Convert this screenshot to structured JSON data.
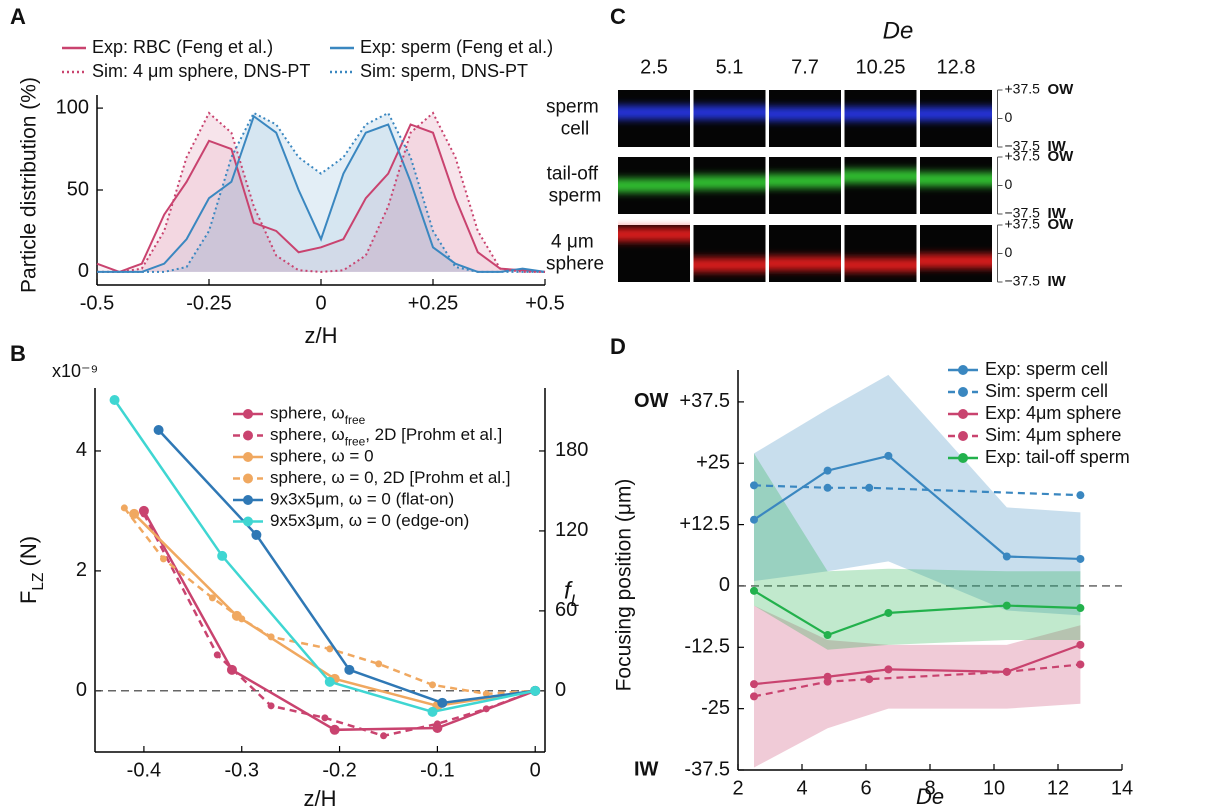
{
  "chart_data": [
    {
      "type": "line",
      "panel": "A",
      "xlabel": "z/H",
      "ylabel": "Particle distribution (%)",
      "xlim": [
        -0.5,
        0.5
      ],
      "ylim": [
        -8,
        108
      ],
      "xticks": [
        {
          "value": -0.5,
          "label": "-0.5"
        },
        {
          "value": -0.25,
          "label": "-0.25"
        },
        0,
        {
          "value": 0.25,
          "label": "+0.25"
        },
        {
          "value": 0.5,
          "label": "+0.5"
        }
      ],
      "yticks": [
        0,
        50,
        100
      ],
      "fill": true,
      "x": [
        -0.5,
        -0.45,
        -0.4,
        -0.35,
        -0.3,
        -0.25,
        -0.2,
        -0.15,
        -0.1,
        -0.05,
        0,
        0.05,
        0.1,
        0.15,
        0.2,
        0.25,
        0.3,
        0.35,
        0.4,
        0.45,
        0.5
      ],
      "series": [
        {
          "name": "Exp: RBC (Feng et al.)",
          "color": "#c9436f",
          "style": "solid",
          "values": [
            5,
            0,
            5,
            35,
            55,
            80,
            75,
            30,
            25,
            12,
            15,
            20,
            45,
            60,
            90,
            85,
            45,
            12,
            2,
            1,
            0
          ]
        },
        {
          "name": "Exp: sperm (Feng et al.)",
          "color": "#3a87c0",
          "style": "solid",
          "values": [
            0,
            0,
            0,
            5,
            20,
            45,
            55,
            95,
            85,
            50,
            20,
            60,
            85,
            90,
            55,
            15,
            5,
            0,
            0,
            2,
            0
          ]
        },
        {
          "name": "Sim: 4 μm sphere, DNS-PT",
          "color": "#c9436f",
          "style": "dotted",
          "values": [
            0,
            0,
            2,
            25,
            70,
            97,
            85,
            40,
            10,
            1,
            0,
            1,
            10,
            40,
            85,
            97,
            70,
            25,
            2,
            0,
            0
          ]
        },
        {
          "name": "Sim: sperm, DNS-PT",
          "color": "#3a87c0",
          "style": "dotted",
          "values": [
            0,
            0,
            0,
            0,
            3,
            25,
            70,
            97,
            90,
            70,
            60,
            70,
            90,
            97,
            70,
            25,
            3,
            0,
            0,
            0,
            0
          ]
        }
      ]
    },
    {
      "type": "line",
      "panel": "B",
      "xlabel": "z/H",
      "ylabel": "F_LZ (N)",
      "multiplier": "x10⁻⁹",
      "y2label": "f_L",
      "xlim": [
        -0.45,
        0.01
      ],
      "ylim": [
        -1.02,
        5.05
      ],
      "y2lim": [
        -45.9,
        227.25
      ],
      "xticks": [
        -0.4,
        -0.3,
        -0.2,
        -0.1,
        0
      ],
      "yticks": [
        0,
        2,
        4
      ],
      "y2ticks": [
        0,
        60,
        120,
        180
      ],
      "zero_line": true,
      "series": [
        {
          "name": "sphere, ω_free",
          "color": "#c9436f",
          "style": "solid",
          "x": [
            -0.4,
            -0.31,
            -0.205,
            -0.1,
            0
          ],
          "values": [
            3.0,
            0.35,
            -0.65,
            -0.62,
            0
          ]
        },
        {
          "name": "sphere, ω_free, 2D [Prohm et al.]",
          "color": "#c9436f",
          "style": "dashed",
          "x": [
            -0.4,
            -0.325,
            -0.27,
            -0.215,
            -0.155,
            -0.1,
            -0.05,
            0
          ],
          "values": [
            2.95,
            0.6,
            -0.25,
            -0.45,
            -0.75,
            -0.55,
            -0.3,
            0
          ]
        },
        {
          "name": "sphere, ω = 0",
          "color": "#f0a860",
          "style": "solid",
          "x": [
            -0.41,
            -0.305,
            -0.205,
            -0.1,
            0
          ],
          "values": [
            2.95,
            1.25,
            0.2,
            -0.25,
            0
          ]
        },
        {
          "name": "sphere, ω = 0, 2D [Prohm et al.]",
          "color": "#f0a860",
          "style": "dashed",
          "x": [
            -0.42,
            -0.38,
            -0.33,
            -0.3,
            -0.27,
            -0.21,
            -0.16,
            -0.105,
            -0.05,
            0
          ],
          "values": [
            3.05,
            2.2,
            1.55,
            1.2,
            0.9,
            0.7,
            0.45,
            0.1,
            -0.05,
            0
          ]
        },
        {
          "name": "9x3x5μm, ω = 0 (flat-on)",
          "color": "#2f78b5",
          "style": "solid",
          "x": [
            -0.385,
            -0.285,
            -0.19,
            -0.095,
            0
          ],
          "values": [
            4.35,
            2.6,
            0.35,
            -0.2,
            0
          ]
        },
        {
          "name": "9x5x3μm, ω = 0 (edge-on)",
          "color": "#3fd6d2",
          "style": "solid",
          "x": [
            -0.43,
            -0.32,
            -0.21,
            -0.105,
            0
          ],
          "values": [
            4.85,
            2.25,
            0.15,
            -0.35,
            0
          ]
        }
      ]
    },
    {
      "type": "image-grid",
      "panel": "C",
      "title": "De",
      "categories": [
        "2.5",
        "5.1",
        "7.7",
        "10.25",
        "12.8"
      ],
      "ylim": [
        -37.5,
        37.5
      ],
      "yticks": [
        {
          "value": 37.5,
          "label": "+37.5"
        },
        0,
        {
          "value": -37.5,
          "label": "−37.5"
        }
      ],
      "top_label": "OW",
      "bottom_label": "IW",
      "series": [
        {
          "name": "sperm cell",
          "color": "#2a3cff",
          "values": [
            8,
            8,
            6,
            6,
            6
          ]
        },
        {
          "name": "tail-off sperm",
          "color": "#38e038",
          "values": [
            0,
            4,
            6,
            12,
            8
          ]
        },
        {
          "name": "4 μm sphere",
          "color": "#ff2020",
          "values": [
            25,
            -15,
            -13,
            -15,
            -10
          ]
        }
      ]
    },
    {
      "type": "line",
      "panel": "D",
      "xlabel": "De",
      "ylabel": "Focusing position (μm)",
      "top_label": "OW",
      "bottom_label": "IW",
      "xlim": [
        2,
        14
      ],
      "ylim": [
        -37.5,
        44
      ],
      "xticks": [
        2,
        4,
        6,
        8,
        10,
        12,
        14
      ],
      "yticks": [
        {
          "value": -37.5,
          "label": "-37.5"
        },
        -25,
        -12.5,
        0,
        {
          "value": 12.5,
          "label": "+12.5"
        },
        {
          "value": 25,
          "label": "+25"
        },
        {
          "value": 37.5,
          "label": "+37.5"
        }
      ],
      "zero_line": true,
      "series": [
        {
          "name": "Exp: sperm cell",
          "color": "#3a87c0",
          "style": "solid",
          "x": [
            2.5,
            4.8,
            6.7,
            10.4,
            12.7
          ],
          "values": [
            13.5,
            23.5,
            26.5,
            6,
            5.5
          ],
          "lower": [
            1,
            3,
            5,
            -5,
            -6
          ],
          "upper": [
            27,
            36,
            43,
            16,
            15
          ]
        },
        {
          "name": "Sim: sperm cell",
          "color": "#3a87c0",
          "style": "dashed",
          "x": [
            2.5,
            4.8,
            6.1,
            12.7
          ],
          "values": [
            20.5,
            20,
            20,
            18.5
          ]
        },
        {
          "name": "Exp: 4μm sphere",
          "color": "#c9436f",
          "style": "solid",
          "x": [
            2.5,
            4.8,
            6.7,
            10.4,
            12.7
          ],
          "values": [
            -20,
            -18.5,
            -17,
            -17.5,
            -12
          ],
          "lower": [
            -37,
            -29,
            -25,
            -25,
            -24
          ],
          "upper": [
            -4,
            -11,
            -12,
            -12,
            -8
          ]
        },
        {
          "name": "Sim: 4μm sphere",
          "color": "#c9436f",
          "style": "dashed",
          "x": [
            2.5,
            4.8,
            6.1,
            10.4,
            12.7
          ],
          "values": [
            -22.5,
            -19.5,
            -19,
            -17.5,
            -16
          ]
        },
        {
          "name": "Exp: tail-off sperm",
          "color": "#22b14c",
          "style": "solid",
          "x": [
            2.5,
            4.8,
            6.7,
            10.4,
            12.7
          ],
          "values": [
            -1,
            -10,
            -5.5,
            -4,
            -4.5
          ],
          "lower": [
            -4,
            -13,
            -12,
            -11,
            -11
          ],
          "upper": [
            27,
            3,
            3.5,
            3,
            3
          ]
        }
      ]
    }
  ]
}
